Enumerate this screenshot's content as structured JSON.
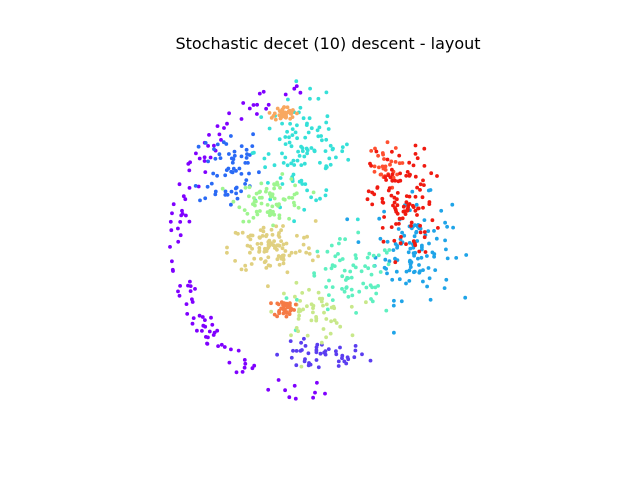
{
  "chart_data": {
    "type": "scatter",
    "title": "Stochastic decet (10) descent - layout",
    "xlabel": "",
    "ylabel": "",
    "axes_visible": false,
    "grid": false,
    "legend": "none",
    "xlim": [
      -1.05,
      1.05
    ],
    "ylim": [
      -1.05,
      1.05
    ],
    "marker": "dot",
    "point_radius_note": "small dots",
    "series": [
      {
        "name": "cluster-violet",
        "color": "#7f00ff",
        "center": [
          -0.55,
          -0.55
        ],
        "spread": [
          0.35,
          0.28
        ],
        "count": 110,
        "mode": "ring"
      },
      {
        "name": "cluster-indigo",
        "color": "#5a3df0",
        "center": [
          -0.05,
          -0.72
        ],
        "spread": [
          0.28,
          0.08
        ],
        "count": 45,
        "mode": "blob"
      },
      {
        "name": "cluster-blue",
        "color": "#2a6af5",
        "center": [
          -0.62,
          0.45
        ],
        "spread": [
          0.18,
          0.25
        ],
        "count": 60,
        "mode": "blob"
      },
      {
        "name": "cluster-lightblue",
        "color": "#1fa4e8",
        "center": [
          0.55,
          -0.05
        ],
        "spread": [
          0.22,
          0.28
        ],
        "count": 110,
        "mode": "blob"
      },
      {
        "name": "cluster-cyan",
        "color": "#35e0d8",
        "center": [
          -0.15,
          0.55
        ],
        "spread": [
          0.28,
          0.3
        ],
        "count": 110,
        "mode": "blob"
      },
      {
        "name": "cluster-aqua",
        "color": "#5ef0c0",
        "center": [
          0.15,
          -0.25
        ],
        "spread": [
          0.28,
          0.22
        ],
        "count": 70,
        "mode": "blob"
      },
      {
        "name": "cluster-mint",
        "color": "#9ef58f",
        "center": [
          -0.35,
          0.25
        ],
        "spread": [
          0.2,
          0.12
        ],
        "count": 70,
        "mode": "blob"
      },
      {
        "name": "cluster-lime",
        "color": "#c8e88a",
        "center": [
          -0.1,
          -0.45
        ],
        "spread": [
          0.2,
          0.15
        ],
        "count": 50,
        "mode": "blob"
      },
      {
        "name": "cluster-sand",
        "color": "#e0d080",
        "center": [
          -0.35,
          -0.05
        ],
        "spread": [
          0.25,
          0.15
        ],
        "count": 100,
        "mode": "blob"
      },
      {
        "name": "cluster-peach",
        "color": "#f8a860",
        "center": [
          -0.27,
          0.78
        ],
        "spread": [
          0.06,
          0.04
        ],
        "count": 40,
        "mode": "blob"
      },
      {
        "name": "cluster-orange",
        "color": "#f57a45",
        "center": [
          -0.27,
          -0.42
        ],
        "spread": [
          0.06,
          0.05
        ],
        "count": 40,
        "mode": "blob"
      },
      {
        "name": "cluster-orangered",
        "color": "#ff5030",
        "center": [
          0.35,
          0.45
        ],
        "spread": [
          0.1,
          0.12
        ],
        "count": 30,
        "mode": "blob"
      },
      {
        "name": "cluster-red",
        "color": "#f01a10",
        "center": [
          0.48,
          0.23
        ],
        "spread": [
          0.18,
          0.3
        ],
        "count": 110,
        "mode": "blob"
      }
    ]
  }
}
